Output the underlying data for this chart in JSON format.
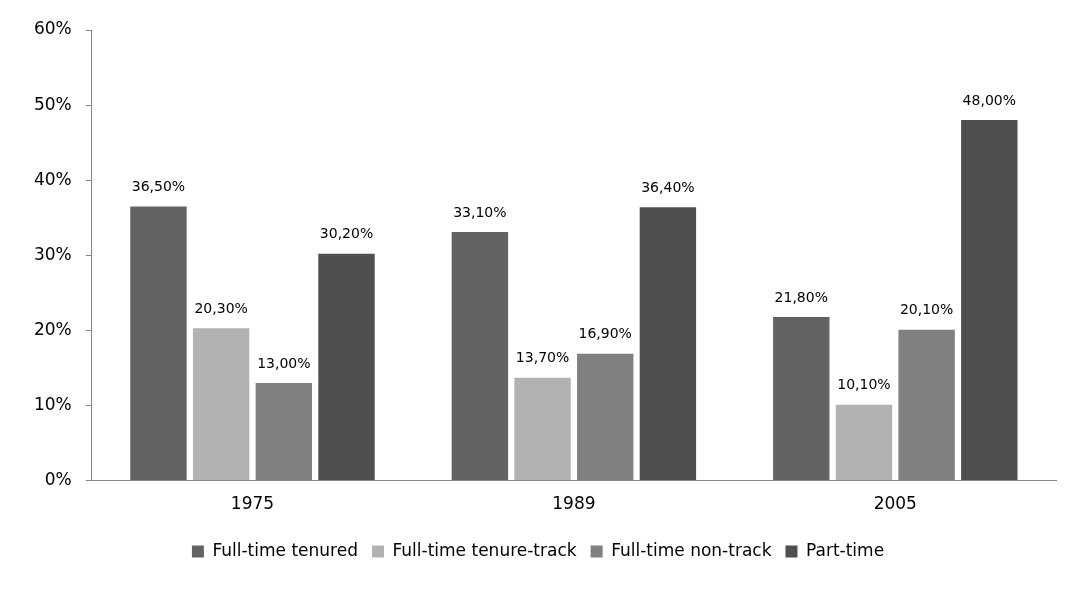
{
  "chart_data": {
    "type": "bar",
    "categories": [
      "1975",
      "1989",
      "2005"
    ],
    "series": [
      {
        "name": "Full-time tenured",
        "color": "#636363",
        "values": [
          36.5,
          33.1,
          21.8
        ],
        "value_labels": [
          "36,50%",
          "33,10%",
          "21,80%"
        ]
      },
      {
        "name": "Full-time tenure-track",
        "color": "#b2b2b2",
        "values": [
          20.3,
          13.7,
          10.1
        ],
        "value_labels": [
          "20,30%",
          "13,70%",
          "10,10%"
        ]
      },
      {
        "name": "Full-time non-track",
        "color": "#808080",
        "values": [
          13.0,
          16.9,
          20.1
        ],
        "value_labels": [
          "13,00%",
          "16,90%",
          "20,10%"
        ]
      },
      {
        "name": "Part-time",
        "color": "#4f4f4f",
        "values": [
          30.2,
          36.4,
          48.0
        ],
        "value_labels": [
          "30,20%",
          "36,40%",
          "48,00%"
        ]
      }
    ],
    "ylim": [
      0,
      60
    ],
    "yticks": [
      {
        "value": 0,
        "label": "0%"
      },
      {
        "value": 10,
        "label": "10%"
      },
      {
        "value": 20,
        "label": "20%"
      },
      {
        "value": 30,
        "label": "30%"
      },
      {
        "value": 40,
        "label": "40%"
      },
      {
        "value": 50,
        "label": "50%"
      },
      {
        "value": 60,
        "label": "60%"
      }
    ],
    "grid": false,
    "legend": "bottom"
  }
}
